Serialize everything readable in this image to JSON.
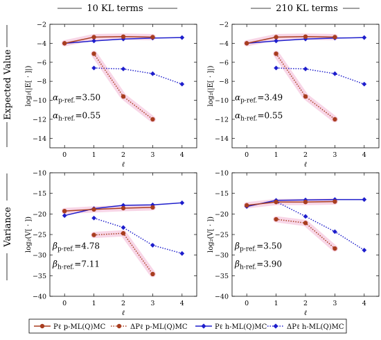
{
  "column_titles": [
    "10 KL terms",
    "210 KL terms"
  ],
  "row_titles": [
    "Expected Value",
    "Variance"
  ],
  "xlabel": "ℓ",
  "ylabel_expected": "log₂(|E[ · ]|)",
  "ylabel_variance": "log₂(V[ · ])",
  "colors": {
    "p": "#a83d1f",
    "h": "#1e1ecc",
    "highlight": "#f7cfe3"
  },
  "legend": [
    {
      "label": "Pℓ p-ML(Q)MC",
      "series": "p",
      "style": "solid"
    },
    {
      "label": "ΔPℓ p-ML(Q)MC",
      "series": "p",
      "style": "dotted"
    },
    {
      "label": "Pℓ h-ML(Q)MC",
      "series": "h",
      "style": "solid"
    },
    {
      "label": "ΔPℓ h-ML(Q)MC",
      "series": "h",
      "style": "dotted"
    }
  ],
  "chart_data": [
    {
      "type": "line",
      "row": "expected",
      "col": 0,
      "xlim": [
        -0.5,
        4.5
      ],
      "ylim": [
        -15,
        -2
      ],
      "xticks": [
        0,
        1,
        2,
        3,
        4
      ],
      "yticks": [
        -14,
        -12,
        -10,
        -8,
        -6,
        -4,
        -2
      ],
      "annotations": [
        "αp-ref.=3.50",
        "αh-ref.=0.55"
      ],
      "series": [
        {
          "id": "P_p",
          "x": [
            0,
            1,
            2,
            3
          ],
          "y": [
            -4.0,
            -3.35,
            -3.3,
            -3.35
          ]
        },
        {
          "id": "dP_p",
          "x": [
            1,
            2,
            3
          ],
          "y": [
            -5.1,
            -9.6,
            -12.0
          ]
        },
        {
          "id": "P_h",
          "x": [
            0,
            1,
            2,
            3,
            4
          ],
          "y": [
            -4.0,
            -3.75,
            -3.55,
            -3.45,
            -3.4
          ]
        },
        {
          "id": "dP_h",
          "x": [
            1,
            2,
            3,
            4
          ],
          "y": [
            -6.6,
            -6.7,
            -7.2,
            -8.3
          ]
        }
      ]
    },
    {
      "type": "line",
      "row": "expected",
      "col": 1,
      "xlim": [
        -0.5,
        4.5
      ],
      "ylim": [
        -15,
        -2
      ],
      "xticks": [
        0,
        1,
        2,
        3,
        4
      ],
      "yticks": [
        -14,
        -12,
        -10,
        -8,
        -6,
        -4,
        -2
      ],
      "annotations": [
        "αp-ref.=3.49",
        "αh-ref.=0.55"
      ],
      "series": [
        {
          "id": "P_p",
          "x": [
            0,
            1,
            2,
            3
          ],
          "y": [
            -4.0,
            -3.35,
            -3.3,
            -3.35
          ]
        },
        {
          "id": "dP_p",
          "x": [
            1,
            2,
            3
          ],
          "y": [
            -5.1,
            -9.6,
            -12.0
          ]
        },
        {
          "id": "P_h",
          "x": [
            0,
            1,
            2,
            3,
            4
          ],
          "y": [
            -4.0,
            -3.75,
            -3.55,
            -3.45,
            -3.4
          ]
        },
        {
          "id": "dP_h",
          "x": [
            1,
            2,
            3,
            4
          ],
          "y": [
            -6.6,
            -6.7,
            -7.2,
            -8.3
          ]
        }
      ]
    },
    {
      "type": "line",
      "row": "variance",
      "col": 0,
      "xlim": [
        -0.5,
        4.5
      ],
      "ylim": [
        -40,
        -10
      ],
      "xticks": [
        0,
        1,
        2,
        3,
        4
      ],
      "yticks": [
        -40,
        -35,
        -30,
        -25,
        -20,
        -15,
        -10
      ],
      "annotations": [
        "βp-ref.=4.78",
        "βh-ref.=7.11"
      ],
      "series": [
        {
          "id": "P_p",
          "x": [
            0,
            1,
            2,
            3
          ],
          "y": [
            -19.3,
            -18.9,
            -18.6,
            -18.4
          ]
        },
        {
          "id": "dP_p",
          "x": [
            1,
            2,
            3
          ],
          "y": [
            -25.1,
            -24.7,
            -34.6
          ]
        },
        {
          "id": "P_h",
          "x": [
            0,
            1,
            2,
            3,
            4
          ],
          "y": [
            -20.4,
            -18.7,
            -17.9,
            -17.8,
            -17.3
          ]
        },
        {
          "id": "dP_h",
          "x": [
            1,
            2,
            3,
            4
          ],
          "y": [
            -21.0,
            -23.3,
            -27.6,
            -29.6
          ]
        }
      ]
    },
    {
      "type": "line",
      "row": "variance",
      "col": 1,
      "xlim": [
        -0.5,
        4.5
      ],
      "ylim": [
        -40,
        -10
      ],
      "xticks": [
        0,
        1,
        2,
        3,
        4
      ],
      "yticks": [
        -40,
        -35,
        -30,
        -25,
        -20,
        -15,
        -10
      ],
      "annotations": [
        "βp-ref.=3.50",
        "βh-ref.=3.90"
      ],
      "series": [
        {
          "id": "P_p",
          "x": [
            0,
            1,
            2,
            3
          ],
          "y": [
            -17.9,
            -17.1,
            -17.1,
            -17.0
          ]
        },
        {
          "id": "dP_p",
          "x": [
            1,
            2,
            3
          ],
          "y": [
            -21.3,
            -22.2,
            -28.4
          ]
        },
        {
          "id": "P_h",
          "x": [
            0,
            1,
            2,
            3,
            4
          ],
          "y": [
            -18.2,
            -16.7,
            -16.6,
            -16.5,
            -16.5
          ]
        },
        {
          "id": "dP_h",
          "x": [
            1,
            2,
            3,
            4
          ],
          "y": [
            -17.0,
            -20.6,
            -24.3,
            -28.8
          ]
        }
      ]
    }
  ]
}
